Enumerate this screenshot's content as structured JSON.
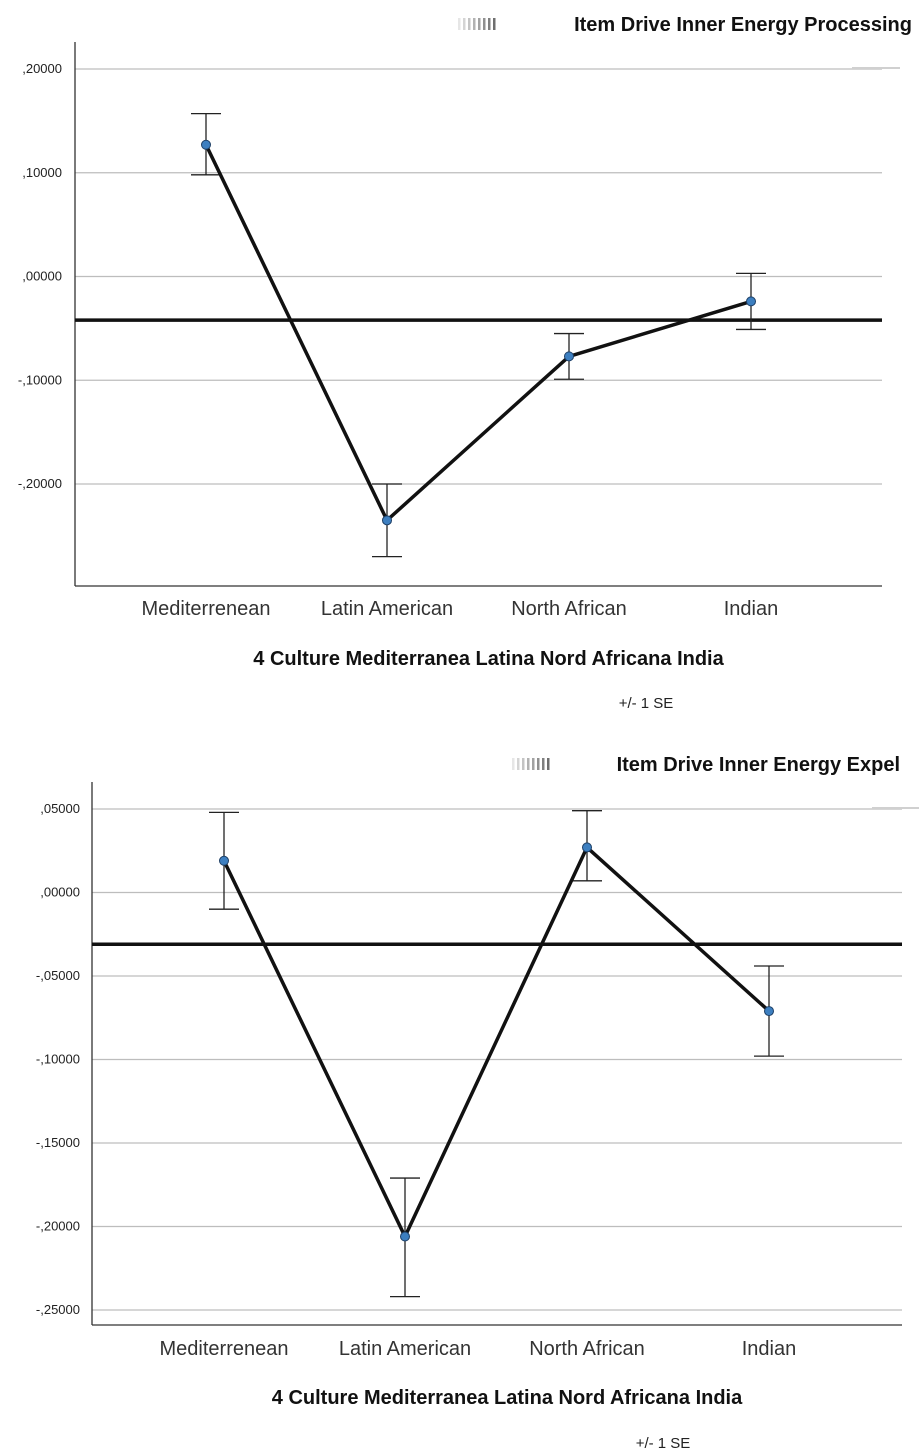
{
  "chart_data": [
    {
      "type": "line",
      "legend_label": "Item Drive Inner Energy Processing",
      "legend_position": "top-right",
      "xlabel": "4 Culture Mediterranea Latina Nord Africana India",
      "note": "+/- 1 SE",
      "categories": [
        "Mediterrenean",
        "Latin American",
        "North African",
        "Indian"
      ],
      "values": [
        0.127,
        -0.235,
        -0.077,
        -0.024
      ],
      "error_low": [
        0.098,
        -0.27,
        -0.099,
        -0.051
      ],
      "error_high": [
        0.157,
        -0.2,
        -0.055,
        0.003
      ],
      "reference_line": -0.042,
      "ylim": [
        -0.29,
        0.225
      ],
      "yticks": [
        0.2,
        0.1,
        0.0,
        -0.1,
        -0.2
      ],
      "ytick_labels": [
        ",20000",
        ",10000",
        ",00000",
        "-,10000",
        "-,20000"
      ],
      "grid": true
    },
    {
      "type": "line",
      "legend_label": "Item Drive Inner Energy Expel",
      "legend_position": "top-right",
      "xlabel": "4 Culture Mediterranea Latina Nord Africana India",
      "note": "+/- 1 SE",
      "categories": [
        "Mediterrenean",
        "Latin American",
        "North African",
        "Indian"
      ],
      "values": [
        0.019,
        -0.206,
        0.027,
        -0.071
      ],
      "error_low": [
        -0.01,
        -0.242,
        0.007,
        -0.098
      ],
      "error_high": [
        0.048,
        -0.171,
        0.049,
        -0.044
      ],
      "reference_line": -0.031,
      "ylim": [
        -0.26,
        0.068
      ],
      "yticks": [
        0.05,
        0.0,
        -0.05,
        -0.1,
        -0.15,
        -0.2,
        -0.25
      ],
      "ytick_labels": [
        ",05000",
        ",00000",
        "-,05000",
        "-,10000",
        "-,15000",
        "-,20000",
        "-,25000"
      ],
      "grid": true
    }
  ],
  "colors": {
    "line": "#111111",
    "point_fill": "#3d7fc0",
    "grid": "#bdbdbd",
    "axis": "#333333"
  }
}
